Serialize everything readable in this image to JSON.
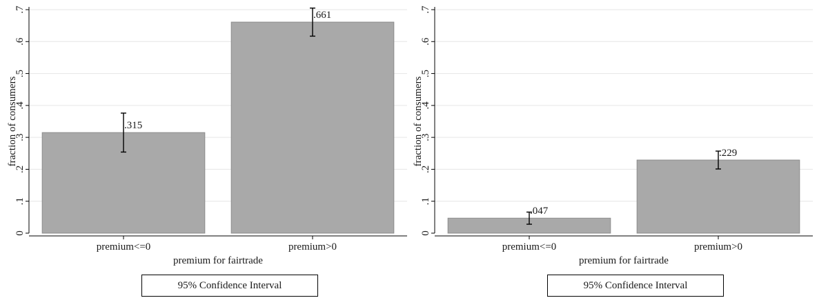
{
  "chart_data": [
    {
      "type": "bar",
      "categories": [
        "premium<=0",
        "premium>0"
      ],
      "values": [
        0.315,
        0.661
      ],
      "value_labels": [
        ".315",
        ".661"
      ],
      "ci_low": [
        0.254,
        0.617
      ],
      "ci_high": [
        0.376,
        0.705
      ],
      "xlabel": "premium for fairtrade",
      "ylabel": "fraction of consumers",
      "ylim": [
        0,
        0.7
      ],
      "yticks": [
        0,
        0.1,
        0.2,
        0.3,
        0.4,
        0.5,
        0.6,
        0.7
      ],
      "ytick_labels": [
        "0",
        ".1",
        ".2",
        ".3",
        ".4",
        ".5",
        ".6",
        ".7"
      ],
      "grid": true,
      "legend": "95% Confidence Interval",
      "bar_color": "#a9a9a9"
    },
    {
      "type": "bar",
      "categories": [
        "premium<=0",
        "premium>0"
      ],
      "values": [
        0.047,
        0.229
      ],
      "value_labels": [
        ".047",
        ".229"
      ],
      "ci_low": [
        0.028,
        0.201
      ],
      "ci_high": [
        0.066,
        0.257
      ],
      "xlabel": "premium for fairtrade",
      "ylabel": "fraction of consumers",
      "ylim": [
        0,
        0.7
      ],
      "yticks": [
        0,
        0.1,
        0.2,
        0.3,
        0.4,
        0.5,
        0.6,
        0.7
      ],
      "ytick_labels": [
        "0",
        ".1",
        ".2",
        ".3",
        ".4",
        ".5",
        ".6",
        ".7"
      ],
      "grid": true,
      "legend": "95% Confidence Interval",
      "bar_color": "#a9a9a9"
    }
  ]
}
